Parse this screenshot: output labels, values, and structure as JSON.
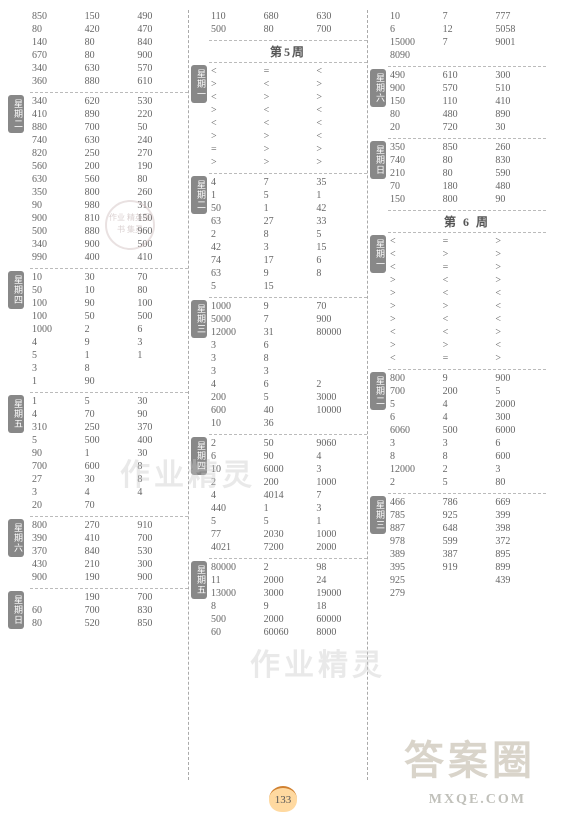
{
  "page_number": "133",
  "watermarks": {
    "wm1": "作业精灵",
    "wm2": "作业精灵",
    "wm3": "答案圈",
    "wm4": "MXQE.COM",
    "stamp": "作业\n精英图书\n集灵"
  },
  "week_headers": {
    "w5": "第5周",
    "w6": "第 6 周"
  },
  "day_labels": {
    "mon": "星期一",
    "tue": "星期二",
    "wed": "星期三",
    "thu": "星期四",
    "fri": "星期五",
    "sat": "星期六",
    "sun": "星期日"
  },
  "col1": {
    "top": [
      [
        "850",
        "150",
        "490"
      ],
      [
        "80",
        "420",
        "470"
      ],
      [
        "140",
        "80",
        "840"
      ],
      [
        "670",
        "80",
        "900"
      ],
      [
        "340",
        "630",
        "570"
      ],
      [
        "360",
        "880",
        "610"
      ]
    ],
    "b2": [
      [
        "340",
        "620",
        "530"
      ],
      [
        "410",
        "890",
        "220"
      ],
      [
        "880",
        "700",
        "50"
      ],
      [
        "740",
        "630",
        "240"
      ],
      [
        "820",
        "250",
        "270"
      ],
      [
        "560",
        "200",
        "190"
      ],
      [
        "630",
        "560",
        "80"
      ],
      [
        "350",
        "800",
        "260"
      ],
      [
        "90",
        "980",
        "310"
      ],
      [
        "900",
        "810",
        "150"
      ],
      [
        "500",
        "880",
        "960"
      ],
      [
        "340",
        "900",
        "500"
      ],
      [
        "990",
        "400",
        "410"
      ]
    ],
    "b4": [
      [
        "10",
        "30",
        "70"
      ],
      [
        "50",
        "10",
        "80"
      ],
      [
        "100",
        "90",
        "100"
      ],
      [
        "100",
        "50",
        "500"
      ],
      [
        "1000",
        "2",
        "6"
      ],
      [
        "4",
        "9",
        "3"
      ],
      [
        "5",
        "1",
        "1"
      ],
      [
        "3",
        "8",
        ""
      ],
      [
        "1",
        "90",
        ""
      ]
    ],
    "b5": [
      [
        "1",
        "5",
        "30"
      ],
      [
        "4",
        "70",
        "90"
      ],
      [
        "310",
        "250",
        "370"
      ],
      [
        "5",
        "500",
        "400"
      ],
      [
        "90",
        "1",
        "30"
      ],
      [
        "700",
        "600",
        "8"
      ],
      [
        "27",
        "30",
        "8"
      ],
      [
        "3",
        "4",
        "4"
      ],
      [
        "20",
        "70",
        ""
      ]
    ],
    "b6": [
      [
        "800",
        "270",
        "910"
      ],
      [
        "390",
        "410",
        "700"
      ],
      [
        "370",
        "840",
        "530"
      ],
      [
        "430",
        "210",
        "300"
      ],
      [
        "900",
        "190",
        "900"
      ]
    ],
    "b7": [
      [
        "",
        "190",
        "700"
      ],
      [
        "60",
        "700",
        "830"
      ],
      [
        "80",
        "520",
        "850"
      ]
    ]
  },
  "col2": {
    "top": [
      [
        "110",
        "680",
        "630"
      ],
      [
        "500",
        "80",
        "700"
      ]
    ],
    "w5_1": [
      [
        "<",
        "=",
        "<"
      ],
      [
        ">",
        "<",
        ">"
      ],
      [
        "<",
        ">",
        ">"
      ],
      [
        ">",
        "<",
        "<"
      ],
      [
        "<",
        "<",
        "<"
      ],
      [
        ">",
        ">",
        "<"
      ],
      [
        "=",
        ">",
        ">"
      ],
      [
        ">",
        ">",
        ">"
      ]
    ],
    "w5_2": [
      [
        "4",
        "7",
        "35"
      ],
      [
        "1",
        "5",
        "1"
      ],
      [
        "50",
        "1",
        "42"
      ],
      [
        "63",
        "27",
        "33"
      ],
      [
        "2",
        "8",
        "5"
      ],
      [
        "42",
        "3",
        "15"
      ],
      [
        "74",
        "17",
        "6"
      ],
      [
        "63",
        "9",
        "8"
      ],
      [
        "5",
        "15",
        ""
      ]
    ],
    "w5_3": [
      [
        "1000",
        "9",
        "70"
      ],
      [
        "5000",
        "7",
        "900"
      ],
      [
        "12000",
        "31",
        "80000"
      ],
      [
        "3",
        "6",
        ""
      ],
      [
        "3",
        "8",
        ""
      ],
      [
        "3",
        "3",
        ""
      ],
      [
        "4",
        "6",
        "2"
      ],
      [
        "200",
        "5",
        "3000"
      ],
      [
        "600",
        "40",
        "10000"
      ],
      [
        "10",
        "36",
        ""
      ]
    ],
    "w5_4": [
      [
        "2",
        "50",
        "9060"
      ],
      [
        "6",
        "90",
        "4"
      ],
      [
        "10",
        "6000",
        "3"
      ],
      [
        "2",
        "200",
        "1000"
      ],
      [
        "4",
        "4014",
        "7"
      ],
      [
        "440",
        "1",
        "3"
      ],
      [
        "5",
        "5",
        "1"
      ],
      [
        "77",
        "2030",
        "1000"
      ],
      [
        "4021",
        "7200",
        "2000"
      ]
    ],
    "w5_5": [
      [
        "80000",
        "2",
        "98"
      ],
      [
        "11",
        "2000",
        "24"
      ],
      [
        "13000",
        "3000",
        "19000"
      ],
      [
        "8",
        "9",
        "18"
      ],
      [
        "500",
        "2000",
        "60000"
      ],
      [
        "60",
        "60060",
        "8000"
      ]
    ]
  },
  "col3": {
    "top": [
      [
        "10",
        "7",
        "777"
      ],
      [
        "6",
        "12",
        "5058"
      ],
      [
        "15000",
        "7",
        "9001"
      ],
      [
        "8090",
        "",
        ""
      ]
    ],
    "b2": [
      [
        "490",
        "610",
        "300"
      ],
      [
        "900",
        "570",
        "510"
      ],
      [
        "150",
        "110",
        "410"
      ],
      [
        "80",
        "480",
        "890"
      ],
      [
        "20",
        "720",
        "30"
      ]
    ],
    "b3": [
      [
        "350",
        "850",
        "260"
      ],
      [
        "740",
        "80",
        "830"
      ],
      [
        "210",
        "80",
        "590"
      ],
      [
        "70",
        "180",
        "480"
      ],
      [
        "150",
        "800",
        "90"
      ]
    ],
    "w6_1": [
      [
        "<",
        "=",
        ">"
      ],
      [
        "<",
        ">",
        ">"
      ],
      [
        "<",
        "=",
        ">"
      ],
      [
        ">",
        "<",
        ">"
      ],
      [
        ">",
        "<",
        "<"
      ],
      [
        ">",
        ">",
        "<"
      ],
      [
        ">",
        "<",
        "<"
      ],
      [
        "<",
        "<",
        ">"
      ],
      [
        ">",
        ">",
        "<"
      ],
      [
        "<",
        "=",
        ">"
      ]
    ],
    "w6_2": [
      [
        "800",
        "9",
        "900"
      ],
      [
        "700",
        "200",
        "5"
      ],
      [
        "5",
        "4",
        "2000"
      ],
      [
        "6",
        "4",
        "300"
      ],
      [
        "6060",
        "500",
        "6000"
      ],
      [
        "3",
        "3",
        "6"
      ],
      [
        "8",
        "8",
        "600"
      ],
      [
        "12000",
        "2",
        "3"
      ],
      [
        "2",
        "5",
        "80"
      ]
    ],
    "w6_3": [
      [
        "466",
        "786",
        "669"
      ],
      [
        "785",
        "925",
        "399"
      ],
      [
        "887",
        "648",
        "398"
      ],
      [
        "978",
        "599",
        "372"
      ],
      [
        "389",
        "387",
        "895"
      ],
      [
        "395",
        "919",
        "899"
      ],
      [
        "925",
        "  ",
        "439"
      ],
      [
        "279",
        "  ",
        "  "
      ]
    ]
  }
}
